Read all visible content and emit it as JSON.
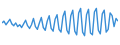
{
  "chart_data": {
    "type": "line",
    "categories": [
      null,
      null,
      null,
      null,
      null,
      null,
      null,
      null,
      null,
      null,
      null,
      null,
      null,
      null,
      null,
      null,
      null,
      null,
      null,
      null,
      null,
      null,
      null,
      null,
      null,
      null,
      null,
      null,
      null,
      null,
      null,
      null,
      null,
      null,
      null,
      null,
      null,
      null,
      null,
      null,
      null,
      null,
      null,
      null,
      null,
      null,
      null,
      null,
      null,
      null,
      null,
      null,
      null,
      null,
      null,
      null,
      null,
      null,
      null,
      null
    ],
    "values": [
      22,
      24,
      20,
      23,
      26,
      21,
      19,
      22,
      18,
      20,
      17,
      21,
      25,
      19,
      16,
      20,
      27,
      18,
      15,
      22,
      28,
      17,
      14,
      24,
      30,
      16,
      13,
      26,
      31,
      15,
      12,
      29,
      35,
      14,
      10,
      30,
      36,
      13,
      9,
      33,
      38,
      12,
      8,
      31,
      37,
      11,
      9,
      34,
      38,
      14,
      10,
      32,
      36,
      12,
      15,
      33,
      30,
      18,
      27,
      24
    ],
    "color": "#3a8ed6",
    "ylim": [
      0,
      45
    ],
    "grid": false,
    "tick_labels": false
  }
}
